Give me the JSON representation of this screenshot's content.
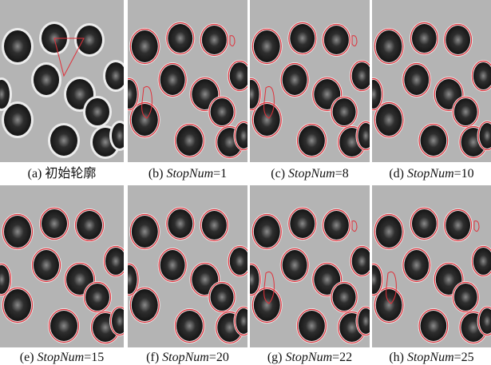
{
  "panels": [
    {
      "label": "(a)",
      "text": "初始轮廓"
    },
    {
      "label": "(b)",
      "param": "StopNum",
      "value": "=1"
    },
    {
      "label": "(c)",
      "param": "StopNum",
      "value": "=8"
    },
    {
      "label": "(d)",
      "param": "StopNum",
      "value": "=10"
    },
    {
      "label": "(e)",
      "param": "StopNum",
      "value": "=15"
    },
    {
      "label": "(f)",
      "param": "StopNum",
      "value": "=20"
    },
    {
      "label": "(g)",
      "param": "StopNum",
      "value": "=22"
    },
    {
      "label": "(h)",
      "param": "StopNum",
      "value": "=25"
    }
  ]
}
